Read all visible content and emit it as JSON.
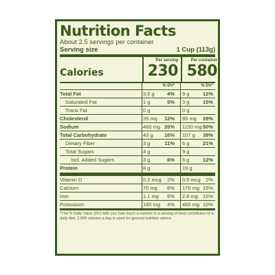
{
  "title": "Nutrition Facts",
  "servings_per_container": "About 2.5 servings per container",
  "serving_size": {
    "label": "Serving size",
    "value": "1 Cup (113g)"
  },
  "calories": {
    "label": "Calories",
    "per_serving_header": "Per serving",
    "per_container_header": "Per container",
    "per_serving_value": "230",
    "per_container_value": "580"
  },
  "dv_header": "% DV*",
  "nutrients": [
    {
      "name": "Total Fat",
      "bold": true,
      "indent": 0,
      "serving_amount": "3.5 g",
      "serving_dv": "4%",
      "container_amount": "9 g",
      "container_dv": "12%"
    },
    {
      "name": "Saturated Fat",
      "bold": false,
      "indent": 1,
      "serving_amount": "1 g",
      "serving_dv": "5%",
      "container_amount": "3 g",
      "container_dv": "15%"
    },
    {
      "name": "Trans Fat",
      "bold": false,
      "indent": 1,
      "serving_amount": "0 g",
      "serving_dv": "",
      "container_amount": "0 g",
      "container_dv": ""
    },
    {
      "name": "Cholesterol",
      "bold": true,
      "indent": 0,
      "serving_amount": "35 mg",
      "serving_dv": "12%",
      "container_amount": "85 mg",
      "container_dv": "28%"
    },
    {
      "name": "Sodium",
      "bold": true,
      "indent": 0,
      "serving_amount": "460 mg",
      "serving_dv": "20%",
      "container_amount": "1150 mg",
      "container_dv": "50%"
    },
    {
      "name": "Total Carbohydrate",
      "bold": true,
      "indent": 0,
      "serving_amount": "43 g",
      "serving_dv": "16%",
      "container_amount": "107 g",
      "container_dv": "39%"
    },
    {
      "name": "Dietary Fiber",
      "bold": false,
      "indent": 1,
      "serving_amount": "3 g",
      "serving_dv": "11%",
      "container_amount": "6 g",
      "container_dv": "21%"
    },
    {
      "name": "Total Sugars",
      "bold": false,
      "indent": 1,
      "serving_amount": "4 g",
      "serving_dv": "",
      "container_amount": "9 g",
      "container_dv": ""
    },
    {
      "name": "Incl. Added Sugars",
      "bold": false,
      "indent": 2,
      "serving_amount": "3 g",
      "serving_dv": "6%",
      "container_amount": "6 g",
      "container_dv": "12%"
    },
    {
      "name": "Protein",
      "bold": true,
      "indent": 0,
      "serving_amount": "8 g",
      "serving_dv": "",
      "container_amount": "19 g",
      "container_dv": ""
    }
  ],
  "vitamins": [
    {
      "name": "Vitamin D",
      "serving_amount": "0.2 mcg",
      "serving_dv": "2%",
      "container_amount": "0.5 mcg",
      "container_dv": "2%"
    },
    {
      "name": "Calcium",
      "serving_amount": "70 mg",
      "serving_dv": "6%",
      "container_amount": "170 mg",
      "container_dv": "15%"
    },
    {
      "name": "Iron",
      "serving_amount": "1.1 mg",
      "serving_dv": "6%",
      "container_amount": "2.8 mg",
      "container_dv": "15%"
    },
    {
      "name": "Potassium",
      "serving_amount": "180 mg",
      "serving_dv": "4%",
      "container_amount": "460 mg",
      "container_dv": "10%"
    }
  ],
  "footnote": "*The % Daily Value (DV) tells you how much a nutrient in a serving of food contributes to a daily diet. 2,000 calories a day is used for general nutrition advice.",
  "colors": {
    "ink": "#3a5a1e",
    "background": "#f4f4dc"
  }
}
